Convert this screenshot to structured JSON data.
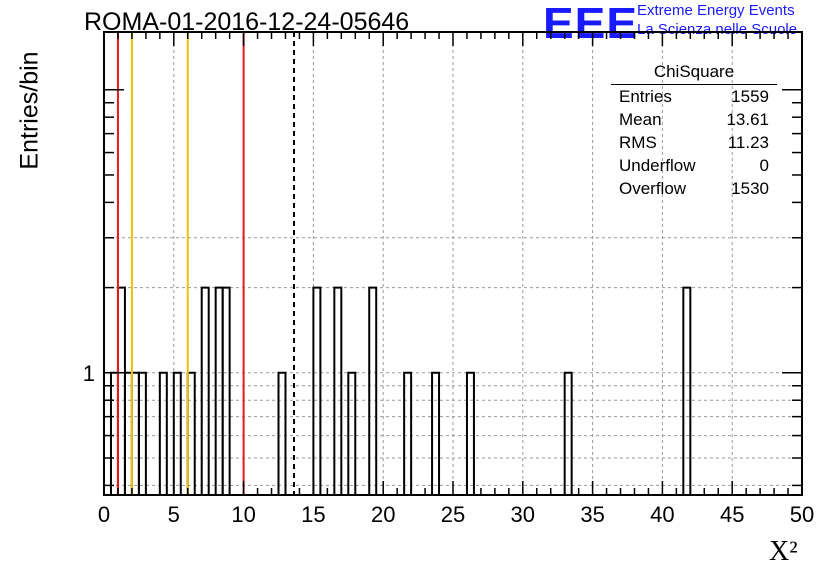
{
  "header": {
    "title": "ROMA-01-2016-12-24-05646",
    "logo_text": "EEE",
    "logo_line1": "Extreme Energy Events",
    "logo_line2": "La Scienza nelle Scuole"
  },
  "stats_box": {
    "name": "ChiSquare",
    "rows": [
      {
        "label": "Entries",
        "value": "1559"
      },
      {
        "label": "Mean",
        "value": "13.61"
      },
      {
        "label": "RMS",
        "value": "11.23"
      },
      {
        "label": "Underflow",
        "value": "0"
      },
      {
        "label": "Overflow",
        "value": "1530"
      }
    ]
  },
  "chart_data": {
    "type": "bar",
    "histogram": "step",
    "xlabel": "X²",
    "ylabel": "Entries/bin",
    "xlim": [
      0,
      50
    ],
    "bin_width": 0.5,
    "ylog": true,
    "ylim": [
      0.37,
      16
    ],
    "grid": true,
    "x_ticks": [
      "0",
      "5",
      "10",
      "15",
      "20",
      "25",
      "30",
      "35",
      "40",
      "45",
      "50"
    ],
    "y_tick_labels": [
      "1"
    ],
    "bins": [
      {
        "x": 0.5,
        "y": 1
      },
      {
        "x": 1.0,
        "y": 2
      },
      {
        "x": 1.5,
        "y": 1
      },
      {
        "x": 2.0,
        "y": 1
      },
      {
        "x": 2.5,
        "y": 1
      },
      {
        "x": 4.0,
        "y": 1
      },
      {
        "x": 5.0,
        "y": 1
      },
      {
        "x": 6.0,
        "y": 1
      },
      {
        "x": 7.0,
        "y": 2
      },
      {
        "x": 8.0,
        "y": 2
      },
      {
        "x": 8.5,
        "y": 2
      },
      {
        "x": 12.5,
        "y": 1
      },
      {
        "x": 15.0,
        "y": 2
      },
      {
        "x": 16.5,
        "y": 2
      },
      {
        "x": 17.5,
        "y": 1
      },
      {
        "x": 19.0,
        "y": 2
      },
      {
        "x": 21.5,
        "y": 1
      },
      {
        "x": 23.5,
        "y": 1
      },
      {
        "x": 26.0,
        "y": 1
      },
      {
        "x": 33.0,
        "y": 1
      },
      {
        "x": 41.5,
        "y": 2
      }
    ],
    "vertical_lines": [
      {
        "x": 1,
        "color": "#e41a1c",
        "style": "solid"
      },
      {
        "x": 2,
        "color": "#f2c200",
        "style": "solid"
      },
      {
        "x": 6,
        "color": "#f2c200",
        "style": "solid"
      },
      {
        "x": 10,
        "color": "#e41a1c",
        "style": "solid"
      },
      {
        "x": 13.61,
        "color": "#000000",
        "style": "dashed"
      }
    ]
  }
}
